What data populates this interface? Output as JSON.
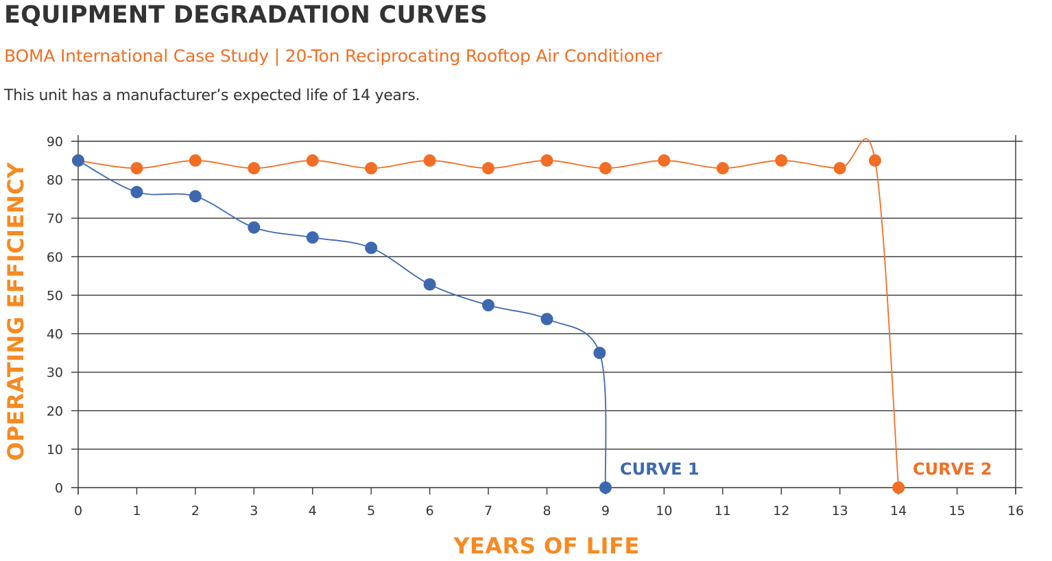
{
  "header": {
    "title": "EQUIPMENT DEGRADATION CURVES",
    "subtitle": "BOMA International Case Study | 20-Ton Reciprocating Rooftop Air Conditioner",
    "description": "This unit has a manufacturer’s expected life of 14 years."
  },
  "colors": {
    "curve1": "#3D68AF",
    "curve2": "#F26E24",
    "axis_title": "#F58A22",
    "grid": "#333333",
    "text": "#333333"
  },
  "chart_data": {
    "type": "line",
    "title": "EQUIPMENT DEGRADATION CURVES",
    "subtitle": "BOMA International Case Study | 20-Ton Reciprocating Rooftop Air Conditioner",
    "xlabel": "YEARS OF LIFE",
    "ylabel": "OPERATING EFFICIENCY",
    "xlim": [
      0,
      16
    ],
    "ylim": [
      0,
      90
    ],
    "xticks": [
      "0",
      "1",
      "2",
      "3",
      "4",
      "5",
      "6",
      "7",
      "8",
      "9",
      "10",
      "11",
      "12",
      "13",
      "14",
      "15",
      "16"
    ],
    "yticks": [
      "0",
      "10",
      "20",
      "30",
      "40",
      "50",
      "60",
      "70",
      "80",
      "90"
    ],
    "grid": "horizontal",
    "smooth": true,
    "series": [
      {
        "name": "CURVE 1",
        "color": "#3D68AF",
        "x": [
          0,
          1,
          2,
          3,
          4,
          5,
          6,
          7,
          8,
          8.9,
          9
        ],
        "y": [
          85,
          76.8,
          75.7,
          67.6,
          65,
          62.3,
          52.8,
          47.4,
          43.8,
          35,
          0
        ]
      },
      {
        "name": "CURVE 2",
        "color": "#F26E24",
        "x": [
          0,
          1,
          2,
          3,
          4,
          5,
          6,
          7,
          8,
          9,
          10,
          11,
          12,
          13,
          13.6,
          14
        ],
        "y": [
          85,
          83,
          85,
          83,
          85,
          83,
          85,
          83,
          85,
          83,
          85,
          83,
          85,
          83,
          85,
          0
        ]
      }
    ],
    "annotations": [
      {
        "text": "CURVE 1",
        "near": "end of curve 1"
      },
      {
        "text": "CURVE 2",
        "near": "end of curve 2"
      }
    ]
  }
}
